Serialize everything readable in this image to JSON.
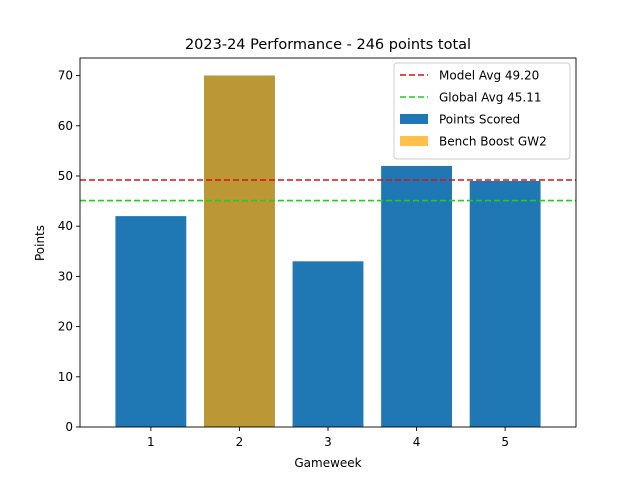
{
  "chart_data": {
    "type": "bar",
    "title": "2023-24 Performance - 246 points total",
    "xlabel": "Gameweek",
    "ylabel": "Points",
    "categories": [
      "1",
      "2",
      "3",
      "4",
      "5"
    ],
    "ylim": [
      0,
      73.5
    ],
    "yticks": [
      0,
      10,
      20,
      30,
      40,
      50,
      60,
      70
    ],
    "grid": false,
    "legend_position": "upper-right",
    "series": [
      {
        "name": "Points Scored",
        "color": "#1f77b4",
        "values": [
          42,
          70,
          33,
          52,
          49
        ]
      }
    ],
    "overlay_bars": [
      {
        "name": "Bench Boost GW2",
        "category": "2",
        "value": 70,
        "color": "#ffa500",
        "opacity": 0.7
      }
    ],
    "reference_lines": [
      {
        "name": "Model Avg 49.20",
        "value": 49.2,
        "color": "#dd1111",
        "style": "dashed"
      },
      {
        "name": "Global Avg 45.11",
        "value": 45.11,
        "color": "#22cc22",
        "style": "dashed"
      }
    ],
    "legend": [
      {
        "label": "Model Avg 49.20",
        "kind": "line",
        "color": "#dd1111"
      },
      {
        "label": "Global Avg 45.11",
        "kind": "line",
        "color": "#22cc22"
      },
      {
        "label": "Points Scored",
        "kind": "patch",
        "color": "#1f77b4"
      },
      {
        "label": "Bench Boost GW2",
        "kind": "patch",
        "color": "#ffa500",
        "opacity": 0.7
      }
    ]
  }
}
